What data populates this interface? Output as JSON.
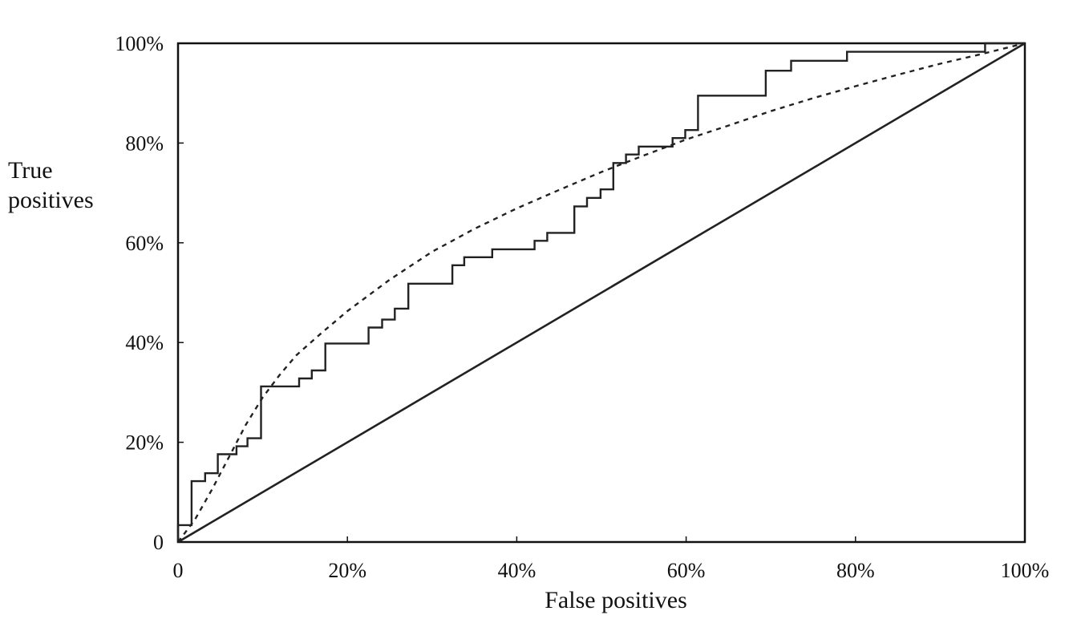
{
  "chart_data": {
    "type": "line",
    "xlabel": "False positives",
    "ylabel_lines": [
      "True",
      "positives"
    ],
    "xlim": [
      0,
      100
    ],
    "ylim": [
      0,
      100
    ],
    "x_ticks": [
      {
        "value": 0,
        "label": "0"
      },
      {
        "value": 20,
        "label": "20%"
      },
      {
        "value": 40,
        "label": "40%"
      },
      {
        "value": 60,
        "label": "60%"
      },
      {
        "value": 80,
        "label": "80%"
      },
      {
        "value": 100,
        "label": "100%"
      }
    ],
    "y_ticks": [
      {
        "value": 0,
        "label": "0"
      },
      {
        "value": 20,
        "label": "20%"
      },
      {
        "value": 40,
        "label": "40%"
      },
      {
        "value": 60,
        "label": "60%"
      },
      {
        "value": 80,
        "label": "80%"
      },
      {
        "value": 100,
        "label": "100%"
      }
    ],
    "grid": false,
    "series": [
      {
        "style": "solid",
        "kind": "step",
        "points": [
          [
            0,
            0
          ],
          [
            0,
            3.4
          ],
          [
            1.6,
            3.4
          ],
          [
            1.6,
            12.2
          ],
          [
            3.2,
            12.2
          ],
          [
            3.2,
            13.8
          ],
          [
            4.7,
            13.8
          ],
          [
            4.7,
            17.6
          ],
          [
            6.9,
            17.6
          ],
          [
            6.9,
            19.2
          ],
          [
            8.2,
            19.2
          ],
          [
            8.2,
            20.8
          ],
          [
            9.8,
            20.8
          ],
          [
            9.8,
            31.2
          ],
          [
            14.3,
            31.2
          ],
          [
            14.3,
            32.8
          ],
          [
            15.8,
            32.8
          ],
          [
            15.8,
            34.4
          ],
          [
            17.4,
            34.4
          ],
          [
            17.4,
            39.8
          ],
          [
            22.5,
            39.8
          ],
          [
            22.5,
            43
          ],
          [
            24.1,
            43
          ],
          [
            24.1,
            44.6
          ],
          [
            25.6,
            44.6
          ],
          [
            25.6,
            46.8
          ],
          [
            27.2,
            46.8
          ],
          [
            27.2,
            51.8
          ],
          [
            32.4,
            51.8
          ],
          [
            32.4,
            55.5
          ],
          [
            33.8,
            55.5
          ],
          [
            33.8,
            57.1
          ],
          [
            37.1,
            57.1
          ],
          [
            37.1,
            58.7
          ],
          [
            42.1,
            58.7
          ],
          [
            42.1,
            60.4
          ],
          [
            43.6,
            60.4
          ],
          [
            43.6,
            62
          ],
          [
            46.8,
            62
          ],
          [
            46.8,
            67.3
          ],
          [
            48.3,
            67.3
          ],
          [
            48.3,
            69
          ],
          [
            49.9,
            69
          ],
          [
            49.9,
            70.7
          ],
          [
            51.4,
            70.7
          ],
          [
            51.4,
            76
          ],
          [
            52.9,
            76
          ],
          [
            52.9,
            77.7
          ],
          [
            54.4,
            77.7
          ],
          [
            54.4,
            79.3
          ],
          [
            58.4,
            79.3
          ],
          [
            58.4,
            81
          ],
          [
            59.9,
            81
          ],
          [
            59.9,
            82.6
          ],
          [
            61.4,
            82.6
          ],
          [
            61.4,
            89.5
          ],
          [
            69.4,
            89.5
          ],
          [
            69.4,
            94.5
          ],
          [
            72.4,
            94.5
          ],
          [
            72.4,
            96.5
          ],
          [
            79,
            96.5
          ],
          [
            79,
            98.3
          ],
          [
            95.3,
            98.3
          ],
          [
            95.3,
            100
          ],
          [
            100,
            100
          ]
        ]
      },
      {
        "style": "dashed",
        "kind": "curve",
        "points": [
          [
            0,
            0
          ],
          [
            2,
            4.5
          ],
          [
            4,
            10.5
          ],
          [
            6,
            17
          ],
          [
            8,
            23.5
          ],
          [
            10,
            29
          ],
          [
            12,
            33.5
          ],
          [
            14,
            37.5
          ],
          [
            17,
            42
          ],
          [
            20,
            46.3
          ],
          [
            25,
            52.6
          ],
          [
            30,
            58.2
          ],
          [
            35,
            62.8
          ],
          [
            40,
            66.9
          ],
          [
            45,
            70.6
          ],
          [
            50,
            74.2
          ],
          [
            55,
            77.5
          ],
          [
            60,
            80.7
          ],
          [
            65,
            83.5
          ],
          [
            70,
            86.4
          ],
          [
            75,
            89
          ],
          [
            80,
            91.4
          ],
          [
            85,
            93.7
          ],
          [
            90,
            95.9
          ],
          [
            95,
            97.9
          ],
          [
            100,
            100
          ]
        ]
      },
      {
        "style": "solid",
        "kind": "diagonal",
        "points": [
          [
            0,
            0
          ],
          [
            100,
            100
          ]
        ]
      }
    ]
  }
}
